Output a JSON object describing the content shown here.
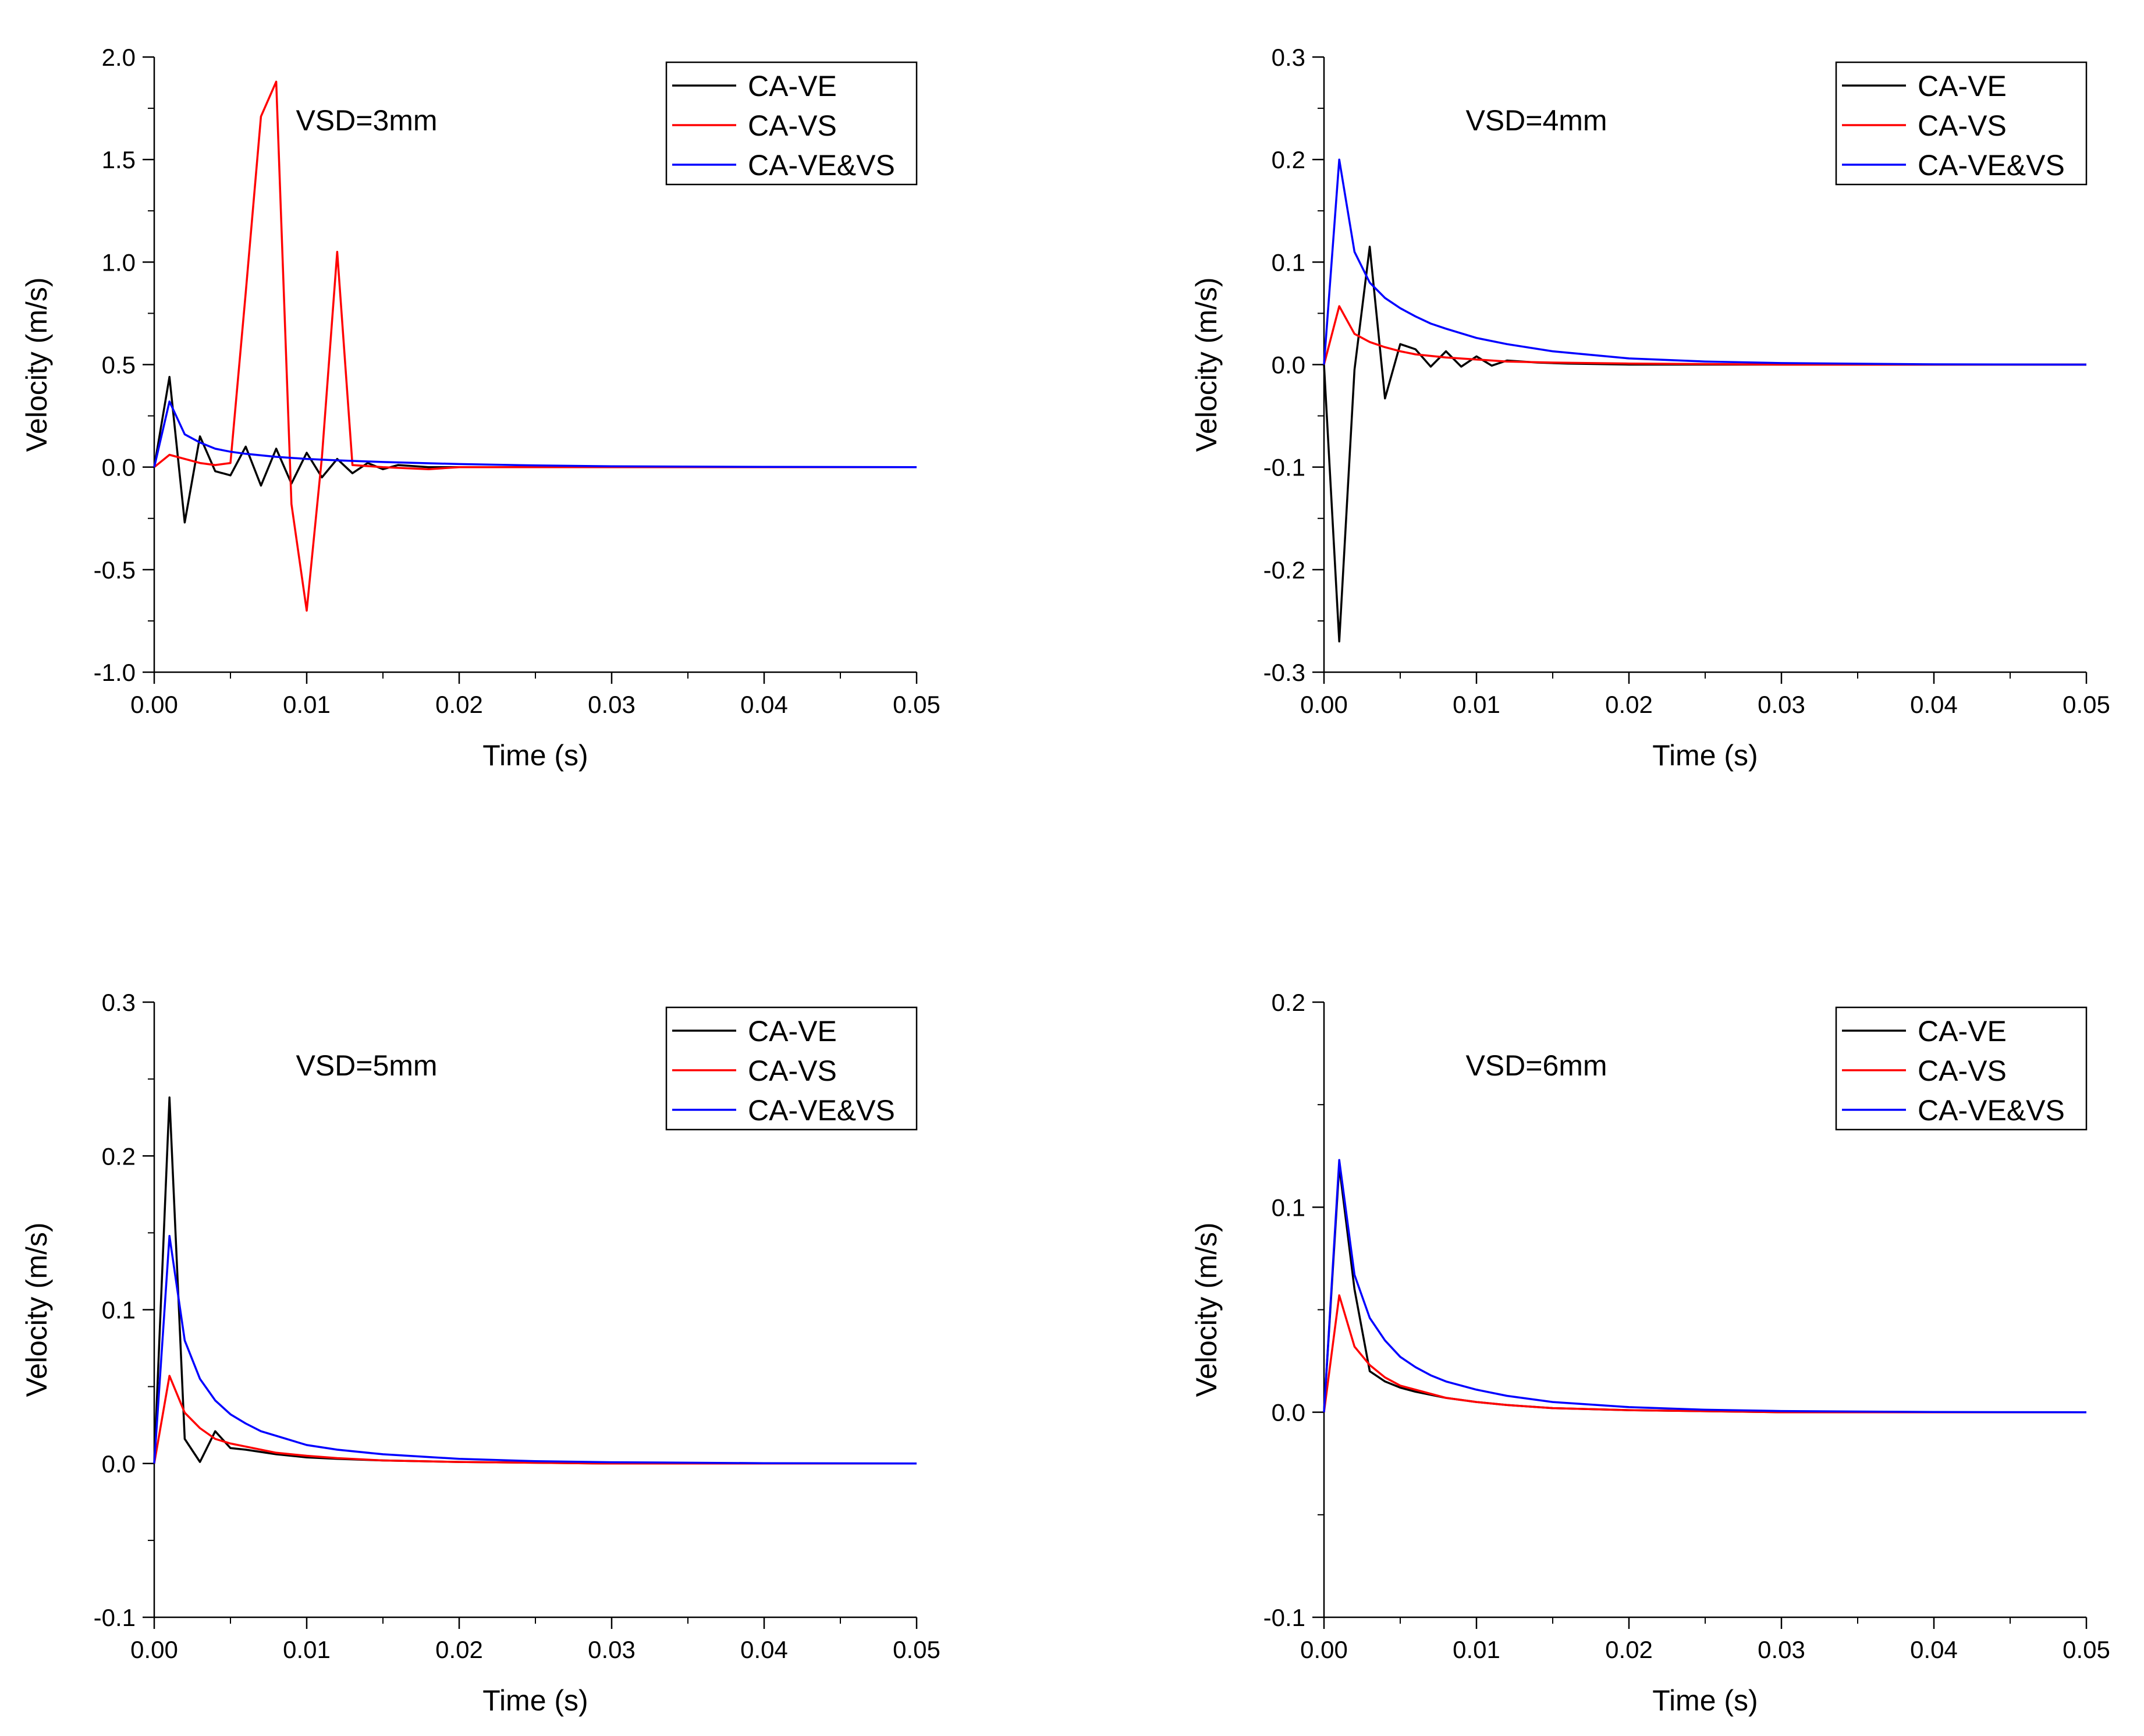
{
  "chart_data": [
    {
      "type": "line",
      "annotation": "VSD=3mm",
      "xlabel": "Time (s)",
      "ylabel": "Velocity (m/s)",
      "xlim": [
        0,
        0.05
      ],
      "ylim": [
        -1.0,
        2.0
      ],
      "xticks": [
        0,
        0.01,
        0.02,
        0.03,
        0.04,
        0.05
      ],
      "xtick_labels": [
        "0.00",
        "0.01",
        "0.02",
        "0.03",
        "0.04",
        "0.05"
      ],
      "yticks": [
        -1.0,
        -0.5,
        0.0,
        0.5,
        1.0,
        1.5,
        2.0
      ],
      "ytick_labels": [
        "-1.0",
        "-0.5",
        "0.0",
        "0.5",
        "1.0",
        "1.5",
        "2.0"
      ],
      "legend_position": "top-right",
      "series": [
        {
          "name": "CA-VE",
          "color": "#000000",
          "x": [
            0,
            0.001,
            0.002,
            0.003,
            0.004,
            0.005,
            0.006,
            0.007,
            0.008,
            0.009,
            0.01,
            0.011,
            0.012,
            0.013,
            0.014,
            0.015,
            0.016,
            0.018,
            0.02,
            0.03,
            0.04,
            0.05
          ],
          "y": [
            0,
            0.44,
            -0.27,
            0.15,
            -0.02,
            -0.04,
            0.1,
            -0.09,
            0.09,
            -0.08,
            0.07,
            -0.05,
            0.04,
            -0.03,
            0.02,
            -0.01,
            0.01,
            0.0,
            0.0,
            0.0,
            0.0,
            0.0
          ]
        },
        {
          "name": "CA-VS",
          "color": "#ff0000",
          "x": [
            0,
            0.001,
            0.002,
            0.003,
            0.004,
            0.005,
            0.006,
            0.007,
            0.008,
            0.009,
            0.01,
            0.011,
            0.012,
            0.013,
            0.015,
            0.018,
            0.02,
            0.03,
            0.04,
            0.05
          ],
          "y": [
            0,
            0.06,
            0.04,
            0.02,
            0.01,
            0.02,
            0.85,
            1.71,
            1.88,
            -0.18,
            -0.7,
            0.05,
            1.05,
            0.01,
            0.0,
            -0.01,
            0.0,
            0.0,
            0.0,
            0.0
          ]
        },
        {
          "name": "CA-VE&VS",
          "color": "#0000ff",
          "x": [
            0,
            0.001,
            0.002,
            0.003,
            0.004,
            0.005,
            0.006,
            0.008,
            0.01,
            0.012,
            0.015,
            0.02,
            0.025,
            0.03,
            0.04,
            0.05
          ],
          "y": [
            0,
            0.32,
            0.16,
            0.12,
            0.09,
            0.075,
            0.065,
            0.05,
            0.04,
            0.033,
            0.025,
            0.015,
            0.008,
            0.004,
            0.001,
            0.0
          ]
        }
      ]
    },
    {
      "type": "line",
      "annotation": "VSD=4mm",
      "xlabel": "Time (s)",
      "ylabel": "Velocity (m/s)",
      "xlim": [
        0,
        0.05
      ],
      "ylim": [
        -0.3,
        0.3
      ],
      "xticks": [
        0,
        0.01,
        0.02,
        0.03,
        0.04,
        0.05
      ],
      "xtick_labels": [
        "0.00",
        "0.01",
        "0.02",
        "0.03",
        "0.04",
        "0.05"
      ],
      "yticks": [
        -0.3,
        -0.2,
        -0.1,
        0.0,
        0.1,
        0.2,
        0.3
      ],
      "ytick_labels": [
        "-0.3",
        "-0.2",
        "-0.1",
        "0.0",
        "0.1",
        "0.2",
        "0.3"
      ],
      "legend_position": "top-right",
      "series": [
        {
          "name": "CA-VE",
          "color": "#000000",
          "x": [
            0,
            0.001,
            0.002,
            0.003,
            0.004,
            0.005,
            0.006,
            0.007,
            0.008,
            0.009,
            0.01,
            0.011,
            0.012,
            0.014,
            0.016,
            0.02,
            0.03,
            0.04,
            0.05
          ],
          "y": [
            0,
            -0.27,
            -0.005,
            0.115,
            -0.033,
            0.02,
            0.015,
            -0.002,
            0.013,
            -0.002,
            0.008,
            -0.001,
            0.004,
            0.002,
            0.001,
            0.0,
            0.0,
            0.0,
            0.0
          ]
        },
        {
          "name": "CA-VS",
          "color": "#ff0000",
          "x": [
            0,
            0.001,
            0.002,
            0.003,
            0.004,
            0.005,
            0.006,
            0.008,
            0.01,
            0.012,
            0.015,
            0.02,
            0.03,
            0.04,
            0.05
          ],
          "y": [
            0,
            0.057,
            0.03,
            0.022,
            0.017,
            0.013,
            0.01,
            0.007,
            0.005,
            0.003,
            0.002,
            0.001,
            0.0,
            0.0,
            0.0
          ]
        },
        {
          "name": "CA-VE&VS",
          "color": "#0000ff",
          "x": [
            0,
            0.001,
            0.002,
            0.003,
            0.004,
            0.005,
            0.006,
            0.007,
            0.008,
            0.01,
            0.012,
            0.015,
            0.02,
            0.025,
            0.03,
            0.04,
            0.05
          ],
          "y": [
            0,
            0.2,
            0.11,
            0.08,
            0.065,
            0.055,
            0.047,
            0.04,
            0.035,
            0.026,
            0.02,
            0.013,
            0.006,
            0.003,
            0.0015,
            0.0003,
            0.0
          ]
        }
      ]
    },
    {
      "type": "line",
      "annotation": "VSD=5mm",
      "xlabel": "Time (s)",
      "ylabel": "Velocity (m/s)",
      "xlim": [
        0,
        0.05
      ],
      "ylim": [
        -0.1,
        0.3
      ],
      "xticks": [
        0,
        0.01,
        0.02,
        0.03,
        0.04,
        0.05
      ],
      "xtick_labels": [
        "0.00",
        "0.01",
        "0.02",
        "0.03",
        "0.04",
        "0.05"
      ],
      "yticks": [
        -0.1,
        0.0,
        0.1,
        0.2,
        0.3
      ],
      "ytick_labels": [
        "-0.1",
        "0.0",
        "0.1",
        "0.2",
        "0.3"
      ],
      "legend_position": "top-right",
      "series": [
        {
          "name": "CA-VE",
          "color": "#000000",
          "x": [
            0,
            0.001,
            0.002,
            0.003,
            0.004,
            0.005,
            0.006,
            0.008,
            0.01,
            0.012,
            0.015,
            0.02,
            0.03,
            0.04,
            0.05
          ],
          "y": [
            0,
            0.238,
            0.016,
            0.001,
            0.021,
            0.01,
            0.009,
            0.006,
            0.004,
            0.003,
            0.002,
            0.001,
            0.0,
            0.0,
            0.0
          ]
        },
        {
          "name": "CA-VS",
          "color": "#ff0000",
          "x": [
            0,
            0.001,
            0.002,
            0.003,
            0.004,
            0.005,
            0.006,
            0.008,
            0.01,
            0.012,
            0.015,
            0.02,
            0.03,
            0.04,
            0.05
          ],
          "y": [
            0,
            0.057,
            0.033,
            0.023,
            0.016,
            0.013,
            0.011,
            0.007,
            0.005,
            0.0035,
            0.002,
            0.001,
            0.0,
            0.0,
            0.0
          ]
        },
        {
          "name": "CA-VE&VS",
          "color": "#0000ff",
          "x": [
            0,
            0.001,
            0.002,
            0.003,
            0.004,
            0.005,
            0.006,
            0.007,
            0.008,
            0.01,
            0.012,
            0.015,
            0.02,
            0.025,
            0.03,
            0.04,
            0.05
          ],
          "y": [
            0,
            0.148,
            0.08,
            0.055,
            0.041,
            0.032,
            0.026,
            0.021,
            0.018,
            0.012,
            0.009,
            0.006,
            0.003,
            0.0015,
            0.0008,
            0.0002,
            0.0
          ]
        }
      ]
    },
    {
      "type": "line",
      "annotation": "VSD=6mm",
      "xlabel": "Time (s)",
      "ylabel": "Velocity (m/s)",
      "xlim": [
        0,
        0.05
      ],
      "ylim": [
        -0.1,
        0.2
      ],
      "xticks": [
        0,
        0.01,
        0.02,
        0.03,
        0.04,
        0.05
      ],
      "xtick_labels": [
        "0.00",
        "0.01",
        "0.02",
        "0.03",
        "0.04",
        "0.05"
      ],
      "yticks": [
        -0.1,
        0.0,
        0.1,
        0.2
      ],
      "ytick_labels": [
        "-0.1",
        "0.0",
        "0.1",
        "0.2"
      ],
      "legend_position": "top-right",
      "series": [
        {
          "name": "CA-VE",
          "color": "#000000",
          "x": [
            0,
            0.001,
            0.002,
            0.003,
            0.004,
            0.005,
            0.006,
            0.008,
            0.01,
            0.012,
            0.015,
            0.02,
            0.03,
            0.04,
            0.05
          ],
          "y": [
            0,
            0.12,
            0.06,
            0.02,
            0.015,
            0.012,
            0.01,
            0.007,
            0.005,
            0.0035,
            0.002,
            0.001,
            0.0,
            0.0,
            0.0
          ]
        },
        {
          "name": "CA-VS",
          "color": "#ff0000",
          "x": [
            0,
            0.001,
            0.002,
            0.003,
            0.004,
            0.005,
            0.006,
            0.008,
            0.01,
            0.012,
            0.015,
            0.02,
            0.03,
            0.04,
            0.05
          ],
          "y": [
            0,
            0.057,
            0.032,
            0.023,
            0.017,
            0.013,
            0.011,
            0.007,
            0.005,
            0.0035,
            0.002,
            0.001,
            0.0,
            0.0,
            0.0
          ]
        },
        {
          "name": "CA-VE&VS",
          "color": "#0000ff",
          "x": [
            0,
            0.001,
            0.002,
            0.003,
            0.004,
            0.005,
            0.006,
            0.007,
            0.008,
            0.01,
            0.012,
            0.015,
            0.02,
            0.025,
            0.03,
            0.04,
            0.05
          ],
          "y": [
            0,
            0.123,
            0.067,
            0.046,
            0.035,
            0.027,
            0.022,
            0.018,
            0.015,
            0.011,
            0.008,
            0.005,
            0.0025,
            0.0012,
            0.0006,
            0.0001,
            0.0
          ]
        }
      ]
    }
  ]
}
